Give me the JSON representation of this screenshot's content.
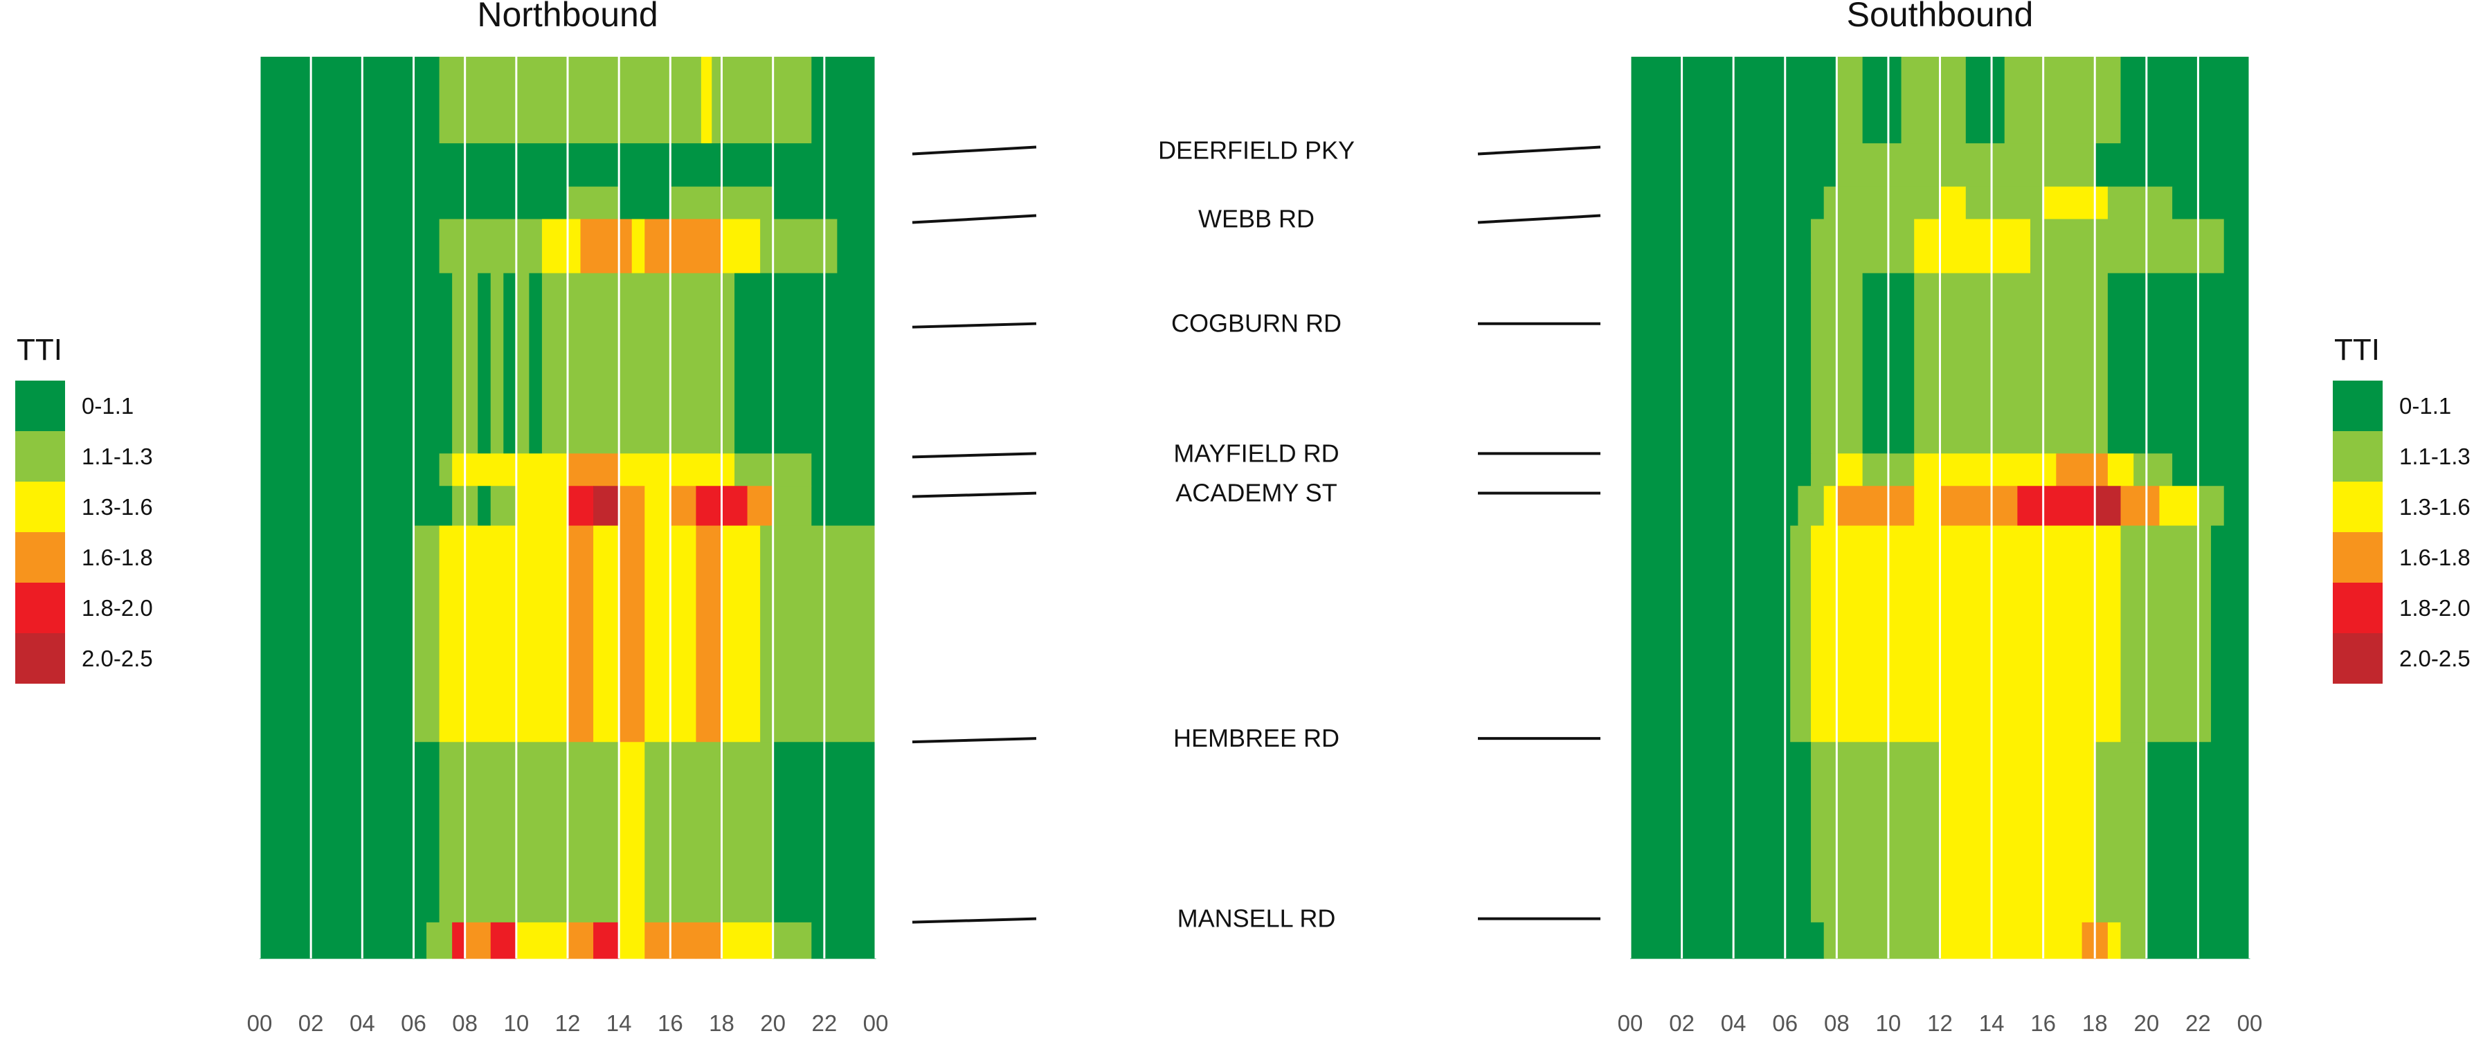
{
  "chart_data": {
    "type": "heatmap",
    "title": "",
    "panels": [
      {
        "name": "Northbound",
        "title": "Northbound",
        "bands": [
          {
            "from": 0,
            "to": 24,
            "row": "r1",
            "cells": [
              [
                0,
                7,
                "0-1.1"
              ],
              [
                7,
                21.5,
                "1.1-1.3"
              ],
              [
                17.2,
                17.6,
                "1.3-1.6"
              ],
              [
                21.5,
                24,
                "0-1.1"
              ]
            ]
          },
          {
            "from": 24,
            "to": 36,
            "row": "r2",
            "cells": [
              [
                0,
                24,
                "0-1.1"
              ]
            ]
          },
          {
            "from": 36,
            "to": 45,
            "row": "r3",
            "cells": [
              [
                0,
                12,
                "0-1.1"
              ],
              [
                12,
                14,
                "1.1-1.3"
              ],
              [
                14,
                16,
                "0-1.1"
              ],
              [
                16,
                20,
                "1.1-1.3"
              ],
              [
                20,
                24,
                "0-1.1"
              ]
            ]
          },
          {
            "from": 45,
            "to": 60,
            "row": "r4",
            "cells": [
              [
                0,
                7,
                "0-1.1"
              ],
              [
                7,
                11,
                "1.1-1.3"
              ],
              [
                11,
                12.5,
                "1.3-1.6"
              ],
              [
                12.5,
                14.5,
                "1.6-1.8"
              ],
              [
                14.5,
                15,
                "1.3-1.6"
              ],
              [
                15,
                16,
                "1.6-1.8"
              ],
              [
                16,
                18,
                "1.6-1.8"
              ],
              [
                18,
                19.5,
                "1.3-1.6"
              ],
              [
                19.5,
                22.5,
                "1.1-1.3"
              ],
              [
                22.5,
                24,
                "0-1.1"
              ]
            ]
          },
          {
            "from": 60,
            "to": 110,
            "row": "r5",
            "cells": [
              [
                0,
                7.5,
                "0-1.1"
              ],
              [
                7.5,
                8.5,
                "1.1-1.3"
              ],
              [
                8.5,
                9,
                "0-1.1"
              ],
              [
                9,
                9.5,
                "1.1-1.3"
              ],
              [
                9.5,
                10,
                "0-1.1"
              ],
              [
                10,
                10.5,
                "1.1-1.3"
              ],
              [
                10.5,
                11,
                "0-1.1"
              ],
              [
                11,
                18.5,
                "1.1-1.3"
              ],
              [
                18.5,
                24,
                "0-1.1"
              ]
            ]
          },
          {
            "from": 110,
            "to": 119,
            "row": "r6",
            "cells": [
              [
                0,
                7,
                "0-1.1"
              ],
              [
                7,
                7.5,
                "1.1-1.3"
              ],
              [
                7.5,
                12,
                "1.3-1.6"
              ],
              [
                12,
                14,
                "1.6-1.8"
              ],
              [
                14,
                18.5,
                "1.3-1.6"
              ],
              [
                18.5,
                21.5,
                "1.1-1.3"
              ],
              [
                21.5,
                24,
                "0-1.1"
              ]
            ]
          },
          {
            "from": 119,
            "to": 130,
            "row": "r7",
            "cells": [
              [
                0,
                7.5,
                "0-1.1"
              ],
              [
                7.5,
                8.5,
                "1.1-1.3"
              ],
              [
                8.5,
                9,
                "0-1.1"
              ],
              [
                9,
                10,
                "1.1-1.3"
              ],
              [
                10,
                12,
                "1.3-1.6"
              ],
              [
                12,
                13,
                "1.8-2.0"
              ],
              [
                13,
                14,
                "2.0-2.5"
              ],
              [
                14,
                15,
                "1.6-1.8"
              ],
              [
                15,
                16,
                "1.3-1.6"
              ],
              [
                16,
                17,
                "1.6-1.8"
              ],
              [
                17,
                19,
                "1.8-2.0"
              ],
              [
                19,
                20,
                "1.6-1.8"
              ],
              [
                20,
                21.5,
                "1.1-1.3"
              ],
              [
                21.5,
                24,
                "0-1.1"
              ]
            ]
          },
          {
            "from": 130,
            "to": 190,
            "row": "r8",
            "cells": [
              [
                0,
                6,
                "0-1.1"
              ],
              [
                6,
                7,
                "1.1-1.3"
              ],
              [
                7,
                12,
                "1.3-1.6"
              ],
              [
                12,
                13,
                "1.6-1.8"
              ],
              [
                13,
                14,
                "1.3-1.6"
              ],
              [
                14,
                15,
                "1.6-1.8"
              ],
              [
                15,
                17,
                "1.3-1.6"
              ],
              [
                17,
                18,
                "1.6-1.8"
              ],
              [
                18,
                19.5,
                "1.3-1.6"
              ],
              [
                19.5,
                24,
                "1.1-1.3"
              ]
            ]
          },
          {
            "from": 190,
            "to": 240,
            "row": "r9",
            "cells": [
              [
                0,
                7,
                "0-1.1"
              ],
              [
                7,
                14,
                "1.1-1.3"
              ],
              [
                14,
                15,
                "1.3-1.6"
              ],
              [
                15,
                18,
                "1.1-1.3"
              ],
              [
                18,
                20,
                "1.1-1.3"
              ],
              [
                20,
                24,
                "0-1.1"
              ]
            ]
          },
          {
            "from": 240,
            "to": 250,
            "row": "r10",
            "cells": [
              [
                0,
                6.5,
                "0-1.1"
              ],
              [
                6.5,
                7.5,
                "1.1-1.3"
              ],
              [
                7.5,
                8,
                "1.8-2.0"
              ],
              [
                8,
                9,
                "1.6-1.8"
              ],
              [
                9,
                10,
                "1.8-2.0"
              ],
              [
                10,
                12,
                "1.3-1.6"
              ],
              [
                12,
                13,
                "1.6-1.8"
              ],
              [
                13,
                14,
                "1.8-2.0"
              ],
              [
                14,
                15,
                "1.3-1.6"
              ],
              [
                15,
                17,
                "1.6-1.8"
              ],
              [
                17,
                18,
                "1.6-1.8"
              ],
              [
                18,
                20,
                "1.3-1.6"
              ],
              [
                20,
                21.5,
                "1.1-1.3"
              ],
              [
                21.5,
                24,
                "0-1.1"
              ]
            ]
          }
        ]
      },
      {
        "name": "Southbound",
        "title": "Southbound",
        "bands": [
          {
            "from": 0,
            "to": 24,
            "row": "r1",
            "cells": [
              [
                0,
                8,
                "0-1.1"
              ],
              [
                8,
                9,
                "1.1-1.3"
              ],
              [
                9,
                10.5,
                "0-1.1"
              ],
              [
                10.5,
                13,
                "1.1-1.3"
              ],
              [
                13,
                14.5,
                "0-1.1"
              ],
              [
                14.5,
                16,
                "1.1-1.3"
              ],
              [
                16,
                19,
                "1.1-1.3"
              ],
              [
                19,
                24,
                "0-1.1"
              ]
            ]
          },
          {
            "from": 24,
            "to": 36,
            "row": "r2",
            "cells": [
              [
                0,
                8,
                "0-1.1"
              ],
              [
                8,
                10,
                "1.1-1.3"
              ],
              [
                10,
                18,
                "1.1-1.3"
              ],
              [
                18,
                24,
                "0-1.1"
              ]
            ]
          },
          {
            "from": 36,
            "to": 45,
            "row": "r3",
            "cells": [
              [
                0,
                7.5,
                "0-1.1"
              ],
              [
                7.5,
                12,
                "1.1-1.3"
              ],
              [
                12,
                13,
                "1.3-1.6"
              ],
              [
                13,
                16,
                "1.1-1.3"
              ],
              [
                16,
                18.5,
                "1.3-1.6"
              ],
              [
                18.5,
                21,
                "1.1-1.3"
              ],
              [
                21,
                24,
                "0-1.1"
              ]
            ]
          },
          {
            "from": 45,
            "to": 60,
            "row": "r4",
            "cells": [
              [
                0,
                7,
                "0-1.1"
              ],
              [
                7,
                11,
                "1.1-1.3"
              ],
              [
                11,
                15.5,
                "1.3-1.6"
              ],
              [
                15.5,
                22,
                "1.1-1.3"
              ],
              [
                22,
                23,
                "1.1-1.3"
              ],
              [
                23,
                24,
                "0-1.1"
              ]
            ]
          },
          {
            "from": 60,
            "to": 110,
            "row": "r5",
            "cells": [
              [
                0,
                7,
                "0-1.1"
              ],
              [
                7,
                9,
                "1.1-1.3"
              ],
              [
                9,
                11,
                "0-1.1"
              ],
              [
                11,
                18.5,
                "1.1-1.3"
              ],
              [
                18.5,
                24,
                "0-1.1"
              ]
            ]
          },
          {
            "from": 110,
            "to": 119,
            "row": "r6",
            "cells": [
              [
                0,
                7,
                "0-1.1"
              ],
              [
                7,
                8,
                "1.1-1.3"
              ],
              [
                8,
                9,
                "1.3-1.6"
              ],
              [
                9,
                11,
                "1.1-1.3"
              ],
              [
                11,
                16.5,
                "1.3-1.6"
              ],
              [
                16.5,
                18.5,
                "1.6-1.8"
              ],
              [
                18.5,
                19.5,
                "1.3-1.6"
              ],
              [
                19.5,
                21,
                "1.1-1.3"
              ],
              [
                21,
                24,
                "0-1.1"
              ]
            ]
          },
          {
            "from": 119,
            "to": 130,
            "row": "r7",
            "cells": [
              [
                0,
                6.5,
                "0-1.1"
              ],
              [
                6.5,
                7.5,
                "1.1-1.3"
              ],
              [
                7.5,
                8,
                "1.3-1.6"
              ],
              [
                8,
                11,
                "1.6-1.8"
              ],
              [
                11,
                12,
                "1.3-1.6"
              ],
              [
                12,
                15,
                "1.6-1.8"
              ],
              [
                15,
                18,
                "1.8-2.0"
              ],
              [
                18,
                19,
                "2.0-2.5"
              ],
              [
                19,
                20.5,
                "1.6-1.8"
              ],
              [
                20.5,
                22,
                "1.3-1.6"
              ],
              [
                22,
                23,
                "1.1-1.3"
              ],
              [
                23,
                24,
                "0-1.1"
              ]
            ]
          },
          {
            "from": 130,
            "to": 190,
            "row": "r8",
            "cells": [
              [
                0,
                6.2,
                "0-1.1"
              ],
              [
                6.2,
                7,
                "1.1-1.3"
              ],
              [
                7,
                19,
                "1.3-1.6"
              ],
              [
                19,
                22.5,
                "1.1-1.3"
              ],
              [
                22.5,
                24,
                "0-1.1"
              ]
            ]
          },
          {
            "from": 190,
            "to": 240,
            "row": "r9",
            "cells": [
              [
                0,
                7,
                "0-1.1"
              ],
              [
                7,
                12,
                "1.1-1.3"
              ],
              [
                12,
                18,
                "1.3-1.6"
              ],
              [
                18,
                20,
                "1.1-1.3"
              ],
              [
                20,
                24,
                "0-1.1"
              ]
            ]
          },
          {
            "from": 240,
            "to": 250,
            "row": "r10",
            "cells": [
              [
                0,
                7.5,
                "0-1.1"
              ],
              [
                7.5,
                12,
                "1.1-1.3"
              ],
              [
                12,
                17.5,
                "1.3-1.6"
              ],
              [
                17.5,
                18.5,
                "1.6-1.8"
              ],
              [
                18.5,
                19,
                "1.3-1.6"
              ],
              [
                19,
                20,
                "1.1-1.3"
              ],
              [
                20,
                24,
                "0-1.1"
              ]
            ]
          }
        ]
      }
    ],
    "x_ticks": [
      "00",
      "02",
      "04",
      "06",
      "08",
      "10",
      "12",
      "14",
      "16",
      "18",
      "20",
      "22",
      "00"
    ],
    "x_range": [
      0,
      24
    ],
    "segment_range": [
      0,
      250
    ],
    "roads": [
      {
        "label": "DEERFIELD PKY",
        "pos": 26
      },
      {
        "label": "WEBB RD",
        "pos": 45
      },
      {
        "label": "COGBURN RD",
        "pos": 74
      },
      {
        "label": "MAYFIELD RD",
        "pos": 110
      },
      {
        "label": "ACADEMY ST",
        "pos": 121
      },
      {
        "label": "HEMBREE RD",
        "pos": 189
      },
      {
        "label": "MANSELL RD",
        "pos": 239
      }
    ],
    "legend": {
      "title": "TTI",
      "entries": [
        {
          "label": "0-1.1",
          "color": "#009444"
        },
        {
          "label": "1.1-1.3",
          "color": "#8DC63F"
        },
        {
          "label": "1.3-1.6",
          "color": "#FFF200"
        },
        {
          "label": "1.6-1.8",
          "color": "#F7941D"
        },
        {
          "label": "1.8-2.0",
          "color": "#ED1C24"
        },
        {
          "label": "2.0-2.5",
          "color": "#C1272D"
        }
      ]
    }
  }
}
